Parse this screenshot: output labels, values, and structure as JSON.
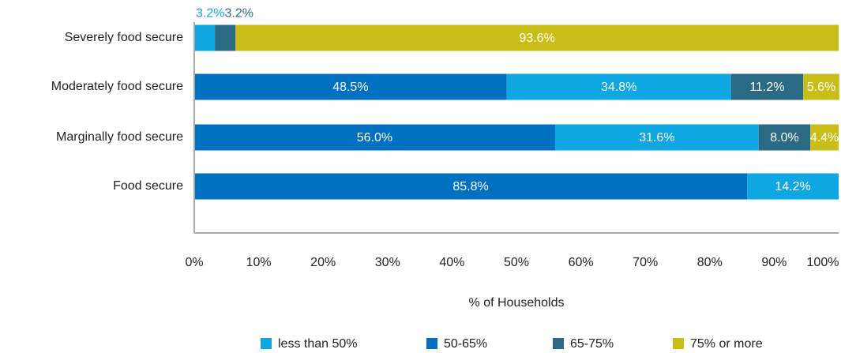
{
  "chart_data": {
    "type": "stacked-bar-horizontal",
    "categories": [
      "Severely food secure",
      "Moderately food secure",
      "Marginally food secure",
      "Food secure"
    ],
    "series": [
      {
        "name": "less than 50%",
        "color": "#0ea7e2",
        "values": [
          3.2,
          34.8,
          31.6,
          14.2
        ],
        "value_labels": [
          "3.2%",
          "34.8%",
          "31.6%",
          "14.2%"
        ]
      },
      {
        "name": "50-65%",
        "color": "#0070c0",
        "values": [
          null,
          48.5,
          56.0,
          85.8
        ],
        "value_labels": [
          null,
          "48.5%",
          "56.0%",
          "85.8%"
        ]
      },
      {
        "name": "65-75%",
        "color": "#2b6a84",
        "values": [
          3.2,
          11.2,
          8.0,
          null
        ],
        "value_labels": [
          "3.2%",
          "11.2%",
          "8.0%",
          null
        ]
      },
      {
        "name": "75% or more",
        "color": "#c9bd18",
        "values": [
          93.6,
          5.6,
          4.4,
          null
        ],
        "value_labels": [
          "93.6%",
          "5.6%",
          "4.4%",
          null
        ]
      }
    ],
    "xlabel": "% of Households",
    "xlim": [
      0,
      100
    ],
    "xticks": [
      {
        "value": 0,
        "label": "0%"
      },
      {
        "value": 10,
        "label": "10%"
      },
      {
        "value": 20,
        "label": "20%"
      },
      {
        "value": 30,
        "label": "30%"
      },
      {
        "value": 40,
        "label": "40%"
      },
      {
        "value": 50,
        "label": "50%"
      },
      {
        "value": 60,
        "label": "60%"
      },
      {
        "value": 70,
        "label": "70%"
      },
      {
        "value": 80,
        "label": "80%"
      },
      {
        "value": 90,
        "label": "90%"
      },
      {
        "value": 100,
        "label": "100%"
      }
    ],
    "legend": "bottom"
  }
}
